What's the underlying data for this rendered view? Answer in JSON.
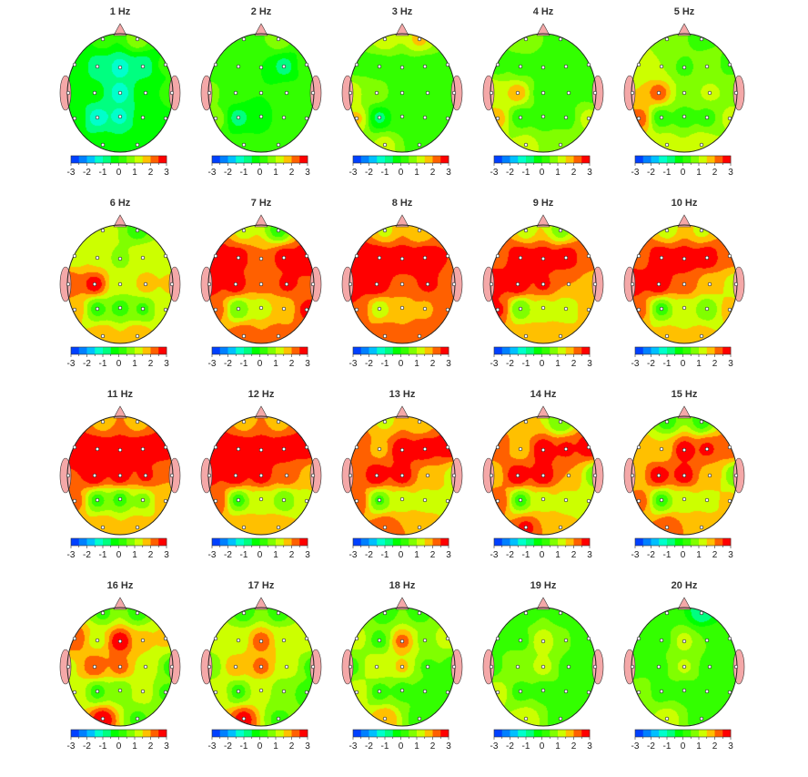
{
  "chart_data": {
    "type": "heatmap",
    "colorbar": {
      "ticks": [
        "-3",
        "-2",
        "-1",
        "0",
        "1",
        "2",
        "3"
      ],
      "range": [
        -3,
        3
      ],
      "colors": [
        "#0040ff",
        "#0080ff",
        "#00bfff",
        "#00ffcc",
        "#00ff80",
        "#00ff00",
        "#33ff00",
        "#80ff00",
        "#ccff00",
        "#ffc000",
        "#ff6000",
        "#ff0000"
      ]
    },
    "panels": [
      {
        "title": "1 Hz",
        "values": [
          0.2,
          0.8,
          0,
          -0.7,
          -1.2,
          -0.8,
          0.1,
          0,
          -0.3,
          -1.2,
          0,
          0.2,
          0,
          -1.2,
          -1.1,
          -0.3,
          0,
          0,
          0
        ]
      },
      {
        "title": "2 Hz",
        "values": [
          0.3,
          0.8,
          0.2,
          0.1,
          0,
          -0.7,
          0.2,
          0.7,
          0.2,
          0,
          0.2,
          0.2,
          0.8,
          -0.7,
          -0.2,
          0.2,
          0.5,
          0.2,
          0.2
        ]
      },
      {
        "title": "3 Hz",
        "values": [
          1.3,
          1.6,
          0.3,
          0.2,
          0.2,
          0.2,
          0.3,
          1.3,
          0.8,
          0.2,
          0.2,
          0.3,
          1.6,
          -0.6,
          0.2,
          0.2,
          0.5,
          1.2,
          0.3
        ]
      },
      {
        "title": "4 Hz",
        "values": [
          0.8,
          0.3,
          0.3,
          0.3,
          0.2,
          0.3,
          0.2,
          1.5,
          1.8,
          0.2,
          0.3,
          0.3,
          1.7,
          0.2,
          0.2,
          0.3,
          1.2,
          1.2,
          0.8
        ]
      },
      {
        "title": "5 Hz",
        "values": [
          0.8,
          0.3,
          1.2,
          1.0,
          0.3,
          0.9,
          0.3,
          1.5,
          2.3,
          0.9,
          1.1,
          1.0,
          2.3,
          0.2,
          0.2,
          0.3,
          1.1,
          1.3,
          1.5
        ]
      },
      {
        "title": "6 Hz",
        "values": [
          1.2,
          0.3,
          1.2,
          1.4,
          0.8,
          1.5,
          1.2,
          2.5,
          2.8,
          1.2,
          1.7,
          1.6,
          1.8,
          0.3,
          0.3,
          0.4,
          1.3,
          2.0,
          2.0
        ]
      },
      {
        "title": "7 Hz",
        "values": [
          1.3,
          0.3,
          2.8,
          2.8,
          2.0,
          2.8,
          2.8,
          2.8,
          2.8,
          2.2,
          2.6,
          2.5,
          2.2,
          0.5,
          1.2,
          1.5,
          2.6,
          2.5,
          2.3
        ]
      },
      {
        "title": "8 Hz",
        "values": [
          1.4,
          1.5,
          2.8,
          2.9,
          2.9,
          2.9,
          2.5,
          2.9,
          2.9,
          2.4,
          2.6,
          2.3,
          2.5,
          1.2,
          1.6,
          1.9,
          2.3,
          2.5,
          2.3
        ]
      },
      {
        "title": "9 Hz",
        "values": [
          1.3,
          0.8,
          2.3,
          2.9,
          2.9,
          2.9,
          2.3,
          2.9,
          2.9,
          2.6,
          2.0,
          1.7,
          2.6,
          0.5,
          1.3,
          1.0,
          1.7,
          1.8,
          1.8
        ]
      },
      {
        "title": "10 Hz",
        "values": [
          1.3,
          1.4,
          2.3,
          2.9,
          2.9,
          2.9,
          2.2,
          2.9,
          2.9,
          2.5,
          1.7,
          1.2,
          2.2,
          0.3,
          1.2,
          0.5,
          1.7,
          1.7,
          1.7
        ]
      },
      {
        "title": "11 Hz",
        "values": [
          1.8,
          1.8,
          2.8,
          2.9,
          2.9,
          2.9,
          2.8,
          2.5,
          2.9,
          2.8,
          2.6,
          2.0,
          2.2,
          0.3,
          0.3,
          0.8,
          1.8,
          2.0,
          1.8
        ]
      },
      {
        "title": "12 Hz",
        "values": [
          1.8,
          1.8,
          2.8,
          2.9,
          2.9,
          2.9,
          2.8,
          2.6,
          2.9,
          2.8,
          2.3,
          1.7,
          2.5,
          0.3,
          1.2,
          0.5,
          1.3,
          2.0,
          2.0
        ]
      },
      {
        "title": "13 Hz",
        "values": [
          1.4,
          1.5,
          2.5,
          1.8,
          2.9,
          2.8,
          2.8,
          2.0,
          2.9,
          2.8,
          1.8,
          1.3,
          2.5,
          0.4,
          1.2,
          1.2,
          1.3,
          2.5,
          2.0
        ]
      },
      {
        "title": "14 Hz",
        "values": [
          1.5,
          0.5,
          2.3,
          1.7,
          2.9,
          2.6,
          2.8,
          1.6,
          2.9,
          2.9,
          2.0,
          0.6,
          2.5,
          0.3,
          1.3,
          1.3,
          1.3,
          2.6,
          1.6
        ]
      },
      {
        "title": "15 Hz",
        "values": [
          0.3,
          0.3,
          1.7,
          1.5,
          2.8,
          2.6,
          2.4,
          1.5,
          2.8,
          2.8,
          1.8,
          0.5,
          2.3,
          0.3,
          1.2,
          1.3,
          1.6,
          2.5,
          1.8
        ]
      },
      {
        "title": "16 Hz",
        "values": [
          0.4,
          0.3,
          2.4,
          1.3,
          2.9,
          1.6,
          1.6,
          1.4,
          2.4,
          2.2,
          1.3,
          0.3,
          1.3,
          0.3,
          0.5,
          1.3,
          0.4,
          2.8,
          0.4
        ]
      },
      {
        "title": "17 Hz",
        "values": [
          0.3,
          0.3,
          1.3,
          1.2,
          2.3,
          1.3,
          1.3,
          0.5,
          1.8,
          2.2,
          1.3,
          0.3,
          1.5,
          0.3,
          1.2,
          0.5,
          0.3,
          2.7,
          0.4
        ]
      },
      {
        "title": "18 Hz",
        "values": [
          0.3,
          0.3,
          1.2,
          0.3,
          2.2,
          0.9,
          1.2,
          0.3,
          1.5,
          1.6,
          0.4,
          0.3,
          1.4,
          0.3,
          0.3,
          0.3,
          0.3,
          2.0,
          0.3
        ]
      },
      {
        "title": "19 Hz",
        "values": [
          0.3,
          0.3,
          0.3,
          0.3,
          1.4,
          0.5,
          0.3,
          0.3,
          0.9,
          1.2,
          0.3,
          0.3,
          1.3,
          0.3,
          0.3,
          0.3,
          0.3,
          1.4,
          0.3
        ]
      },
      {
        "title": "20 Hz",
        "values": [
          0.3,
          -0.8,
          0.3,
          0.3,
          1.2,
          0.5,
          0.3,
          0.3,
          0.4,
          1.1,
          0.3,
          0.3,
          0.8,
          0.3,
          0.3,
          0.3,
          0.3,
          1.3,
          0.3
        ]
      }
    ]
  }
}
